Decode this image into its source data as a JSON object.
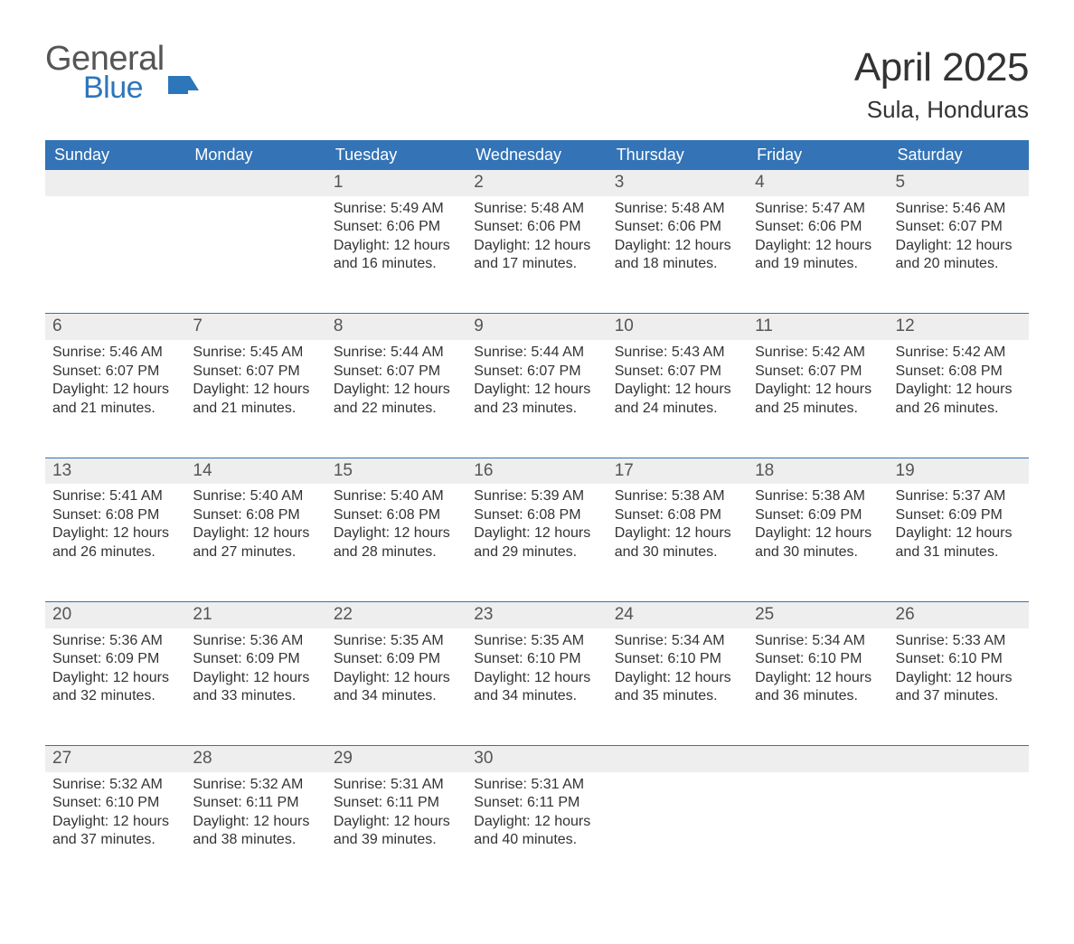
{
  "logo": {
    "word1": "General",
    "word2": "Blue",
    "flag_color": "#2d76ba",
    "text_gray": "#555555"
  },
  "title": {
    "month": "April 2025",
    "location": "Sula, Honduras"
  },
  "colors": {
    "header_bg": "#3373b6",
    "header_text": "#ffffff",
    "daynum_bg": "#eeeeee",
    "daynum_text": "#555555",
    "body_text": "#333333",
    "week_rule": "#3373b6",
    "page_bg": "#ffffff"
  },
  "typography": {
    "month_title_pt": 44,
    "location_pt": 26,
    "dayhead_pt": 18,
    "daynum_pt": 19,
    "body_pt": 16,
    "font_family": "Helvetica/Arial"
  },
  "layout": {
    "columns": 7,
    "rows": 5,
    "start_weekday": "Sunday",
    "first_day_column_index": 2
  },
  "day_headers": [
    "Sunday",
    "Monday",
    "Tuesday",
    "Wednesday",
    "Thursday",
    "Friday",
    "Saturday"
  ],
  "labels": {
    "sunrise": "Sunrise: ",
    "sunset": "Sunset: ",
    "daylight": "Daylight: "
  },
  "days": [
    {
      "n": 1,
      "sunrise": "5:49 AM",
      "sunset": "6:06 PM",
      "daylight": "12 hours and 16 minutes."
    },
    {
      "n": 2,
      "sunrise": "5:48 AM",
      "sunset": "6:06 PM",
      "daylight": "12 hours and 17 minutes."
    },
    {
      "n": 3,
      "sunrise": "5:48 AM",
      "sunset": "6:06 PM",
      "daylight": "12 hours and 18 minutes."
    },
    {
      "n": 4,
      "sunrise": "5:47 AM",
      "sunset": "6:06 PM",
      "daylight": "12 hours and 19 minutes."
    },
    {
      "n": 5,
      "sunrise": "5:46 AM",
      "sunset": "6:07 PM",
      "daylight": "12 hours and 20 minutes."
    },
    {
      "n": 6,
      "sunrise": "5:46 AM",
      "sunset": "6:07 PM",
      "daylight": "12 hours and 21 minutes."
    },
    {
      "n": 7,
      "sunrise": "5:45 AM",
      "sunset": "6:07 PM",
      "daylight": "12 hours and 21 minutes."
    },
    {
      "n": 8,
      "sunrise": "5:44 AM",
      "sunset": "6:07 PM",
      "daylight": "12 hours and 22 minutes."
    },
    {
      "n": 9,
      "sunrise": "5:44 AM",
      "sunset": "6:07 PM",
      "daylight": "12 hours and 23 minutes."
    },
    {
      "n": 10,
      "sunrise": "5:43 AM",
      "sunset": "6:07 PM",
      "daylight": "12 hours and 24 minutes."
    },
    {
      "n": 11,
      "sunrise": "5:42 AM",
      "sunset": "6:07 PM",
      "daylight": "12 hours and 25 minutes."
    },
    {
      "n": 12,
      "sunrise": "5:42 AM",
      "sunset": "6:08 PM",
      "daylight": "12 hours and 26 minutes."
    },
    {
      "n": 13,
      "sunrise": "5:41 AM",
      "sunset": "6:08 PM",
      "daylight": "12 hours and 26 minutes."
    },
    {
      "n": 14,
      "sunrise": "5:40 AM",
      "sunset": "6:08 PM",
      "daylight": "12 hours and 27 minutes."
    },
    {
      "n": 15,
      "sunrise": "5:40 AM",
      "sunset": "6:08 PM",
      "daylight": "12 hours and 28 minutes."
    },
    {
      "n": 16,
      "sunrise": "5:39 AM",
      "sunset": "6:08 PM",
      "daylight": "12 hours and 29 minutes."
    },
    {
      "n": 17,
      "sunrise": "5:38 AM",
      "sunset": "6:08 PM",
      "daylight": "12 hours and 30 minutes."
    },
    {
      "n": 18,
      "sunrise": "5:38 AM",
      "sunset": "6:09 PM",
      "daylight": "12 hours and 30 minutes."
    },
    {
      "n": 19,
      "sunrise": "5:37 AM",
      "sunset": "6:09 PM",
      "daylight": "12 hours and 31 minutes."
    },
    {
      "n": 20,
      "sunrise": "5:36 AM",
      "sunset": "6:09 PM",
      "daylight": "12 hours and 32 minutes."
    },
    {
      "n": 21,
      "sunrise": "5:36 AM",
      "sunset": "6:09 PM",
      "daylight": "12 hours and 33 minutes."
    },
    {
      "n": 22,
      "sunrise": "5:35 AM",
      "sunset": "6:09 PM",
      "daylight": "12 hours and 34 minutes."
    },
    {
      "n": 23,
      "sunrise": "5:35 AM",
      "sunset": "6:10 PM",
      "daylight": "12 hours and 34 minutes."
    },
    {
      "n": 24,
      "sunrise": "5:34 AM",
      "sunset": "6:10 PM",
      "daylight": "12 hours and 35 minutes."
    },
    {
      "n": 25,
      "sunrise": "5:34 AM",
      "sunset": "6:10 PM",
      "daylight": "12 hours and 36 minutes."
    },
    {
      "n": 26,
      "sunrise": "5:33 AM",
      "sunset": "6:10 PM",
      "daylight": "12 hours and 37 minutes."
    },
    {
      "n": 27,
      "sunrise": "5:32 AM",
      "sunset": "6:10 PM",
      "daylight": "12 hours and 37 minutes."
    },
    {
      "n": 28,
      "sunrise": "5:32 AM",
      "sunset": "6:11 PM",
      "daylight": "12 hours and 38 minutes."
    },
    {
      "n": 29,
      "sunrise": "5:31 AM",
      "sunset": "6:11 PM",
      "daylight": "12 hours and 39 minutes."
    },
    {
      "n": 30,
      "sunrise": "5:31 AM",
      "sunset": "6:11 PM",
      "daylight": "12 hours and 40 minutes."
    }
  ]
}
